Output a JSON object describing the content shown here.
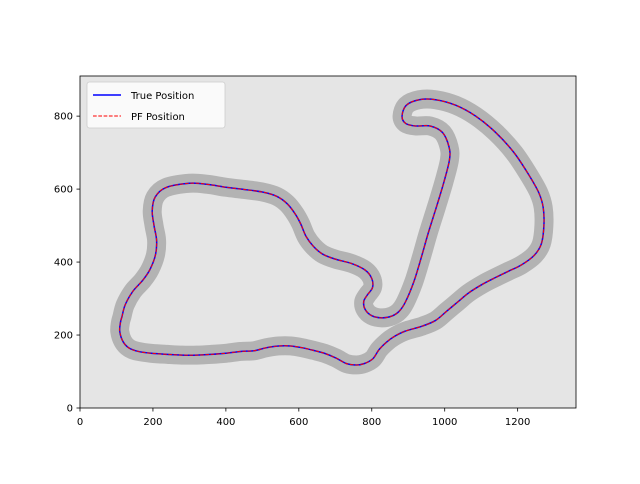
{
  "chart_data": {
    "type": "line",
    "title": "",
    "xlabel": "",
    "ylabel": "",
    "xlim": [
      0,
      1360
    ],
    "ylim": [
      0,
      910
    ],
    "xticks": [
      0,
      200,
      400,
      600,
      800,
      1000,
      1200
    ],
    "yticks": [
      0,
      200,
      400,
      600,
      800
    ],
    "xtick_labels": [
      "0",
      "200",
      "400",
      "600",
      "800",
      "1000",
      "1200"
    ],
    "ytick_labels": [
      "0",
      "200",
      "400",
      "600",
      "800"
    ],
    "grid": false,
    "axes_background": "#e5e5e5",
    "track_band": {
      "color": "#b3b3b3",
      "width_data_units": 52
    },
    "legend": {
      "placement": "upper-left",
      "entries": [
        {
          "label": "True Position",
          "color": "#0000ff",
          "style": "solid"
        },
        {
          "label": "PF Position",
          "color": "#ff0000",
          "style": "dashed"
        }
      ]
    },
    "series": [
      {
        "name": "True Position",
        "color": "#0000ff",
        "style": "solid",
        "points": [
          [
            115,
            250
          ],
          [
            124,
            283
          ],
          [
            145,
            320
          ],
          [
            172,
            350
          ],
          [
            192,
            380
          ],
          [
            207,
            420
          ],
          [
            210,
            460
          ],
          [
            203,
            500
          ],
          [
            198,
            540
          ],
          [
            206,
            578
          ],
          [
            235,
            604
          ],
          [
            300,
            616
          ],
          [
            350,
            613
          ],
          [
            400,
            605
          ],
          [
            450,
            599
          ],
          [
            500,
            592
          ],
          [
            540,
            580
          ],
          [
            568,
            560
          ],
          [
            590,
            532
          ],
          [
            605,
            505
          ],
          [
            620,
            470
          ],
          [
            640,
            443
          ],
          [
            665,
            422
          ],
          [
            700,
            408
          ],
          [
            745,
            396
          ],
          [
            782,
            378
          ],
          [
            800,
            355
          ],
          [
            802,
            330
          ],
          [
            788,
            310
          ],
          [
            778,
            292
          ],
          [
            782,
            270
          ],
          [
            800,
            253
          ],
          [
            828,
            247
          ],
          [
            855,
            252
          ],
          [
            875,
            265
          ],
          [
            892,
            290
          ],
          [
            915,
            345
          ],
          [
            935,
            410
          ],
          [
            955,
            480
          ],
          [
            977,
            550
          ],
          [
            998,
            620
          ],
          [
            1013,
            680
          ],
          [
            1012,
            715
          ],
          [
            994,
            755
          ],
          [
            960,
            773
          ],
          [
            920,
            773
          ],
          [
            893,
            780
          ],
          [
            883,
            800
          ],
          [
            895,
            830
          ],
          [
            930,
            845
          ],
          [
            975,
            845
          ],
          [
            1030,
            830
          ],
          [
            1085,
            800
          ],
          [
            1140,
            755
          ],
          [
            1190,
            700
          ],
          [
            1230,
            640
          ],
          [
            1258,
            590
          ],
          [
            1270,
            550
          ],
          [
            1272,
            500
          ],
          [
            1265,
            450
          ],
          [
            1245,
            418
          ],
          [
            1210,
            392
          ],
          [
            1175,
            375
          ],
          [
            1140,
            358
          ],
          [
            1105,
            340
          ],
          [
            1065,
            315
          ],
          [
            1035,
            290
          ],
          [
            1005,
            265
          ],
          [
            975,
            240
          ],
          [
            940,
            225
          ],
          [
            890,
            210
          ],
          [
            860,
            195
          ],
          [
            840,
            180
          ],
          [
            820,
            160
          ],
          [
            803,
            135
          ],
          [
            780,
            122
          ],
          [
            758,
            118
          ],
          [
            730,
            122
          ],
          [
            702,
            137
          ],
          [
            670,
            150
          ],
          [
            640,
            158
          ],
          [
            610,
            165
          ],
          [
            578,
            170
          ],
          [
            545,
            170
          ],
          [
            510,
            165
          ],
          [
            478,
            157
          ],
          [
            440,
            155
          ],
          [
            400,
            150
          ],
          [
            360,
            147
          ],
          [
            320,
            145
          ],
          [
            280,
            145
          ],
          [
            240,
            147
          ],
          [
            195,
            150
          ],
          [
            160,
            155
          ],
          [
            135,
            164
          ],
          [
            118,
            182
          ],
          [
            109,
            210
          ],
          [
            111,
            235
          ],
          [
            115,
            250
          ]
        ]
      },
      {
        "name": "PF Position",
        "color": "#ff0000",
        "style": "dashed",
        "points": [
          [
            115,
            250
          ],
          [
            124,
            283
          ],
          [
            145,
            320
          ],
          [
            172,
            350
          ],
          [
            192,
            380
          ],
          [
            207,
            420
          ],
          [
            210,
            460
          ],
          [
            203,
            500
          ],
          [
            198,
            540
          ],
          [
            206,
            578
          ],
          [
            235,
            604
          ],
          [
            300,
            616
          ],
          [
            350,
            613
          ],
          [
            400,
            605
          ],
          [
            450,
            599
          ],
          [
            500,
            592
          ],
          [
            540,
            580
          ],
          [
            568,
            560
          ],
          [
            590,
            532
          ],
          [
            605,
            505
          ],
          [
            620,
            470
          ],
          [
            640,
            443
          ],
          [
            665,
            422
          ],
          [
            700,
            408
          ],
          [
            745,
            396
          ],
          [
            782,
            378
          ],
          [
            800,
            355
          ],
          [
            802,
            330
          ],
          [
            788,
            310
          ],
          [
            778,
            292
          ],
          [
            782,
            270
          ],
          [
            800,
            253
          ],
          [
            828,
            247
          ],
          [
            855,
            252
          ],
          [
            875,
            265
          ],
          [
            892,
            290
          ],
          [
            915,
            345
          ],
          [
            935,
            410
          ],
          [
            955,
            480
          ],
          [
            977,
            550
          ],
          [
            998,
            620
          ],
          [
            1013,
            680
          ],
          [
            1012,
            715
          ],
          [
            994,
            755
          ],
          [
            960,
            773
          ],
          [
            920,
            773
          ],
          [
            893,
            780
          ],
          [
            883,
            800
          ],
          [
            895,
            830
          ],
          [
            930,
            845
          ],
          [
            975,
            845
          ],
          [
            1030,
            830
          ],
          [
            1085,
            800
          ],
          [
            1140,
            755
          ],
          [
            1190,
            700
          ],
          [
            1230,
            640
          ],
          [
            1258,
            590
          ],
          [
            1270,
            550
          ],
          [
            1272,
            500
          ],
          [
            1265,
            450
          ],
          [
            1245,
            418
          ],
          [
            1210,
            392
          ],
          [
            1175,
            375
          ],
          [
            1140,
            358
          ],
          [
            1105,
            340
          ],
          [
            1065,
            315
          ],
          [
            1035,
            290
          ],
          [
            1005,
            265
          ],
          [
            975,
            240
          ],
          [
            940,
            225
          ],
          [
            890,
            210
          ],
          [
            860,
            195
          ],
          [
            840,
            180
          ],
          [
            820,
            160
          ],
          [
            803,
            135
          ],
          [
            780,
            122
          ],
          [
            758,
            118
          ],
          [
            730,
            122
          ],
          [
            702,
            137
          ],
          [
            670,
            150
          ],
          [
            640,
            158
          ],
          [
            610,
            165
          ],
          [
            578,
            170
          ],
          [
            545,
            170
          ],
          [
            510,
            165
          ],
          [
            478,
            157
          ],
          [
            440,
            155
          ],
          [
            400,
            150
          ],
          [
            360,
            147
          ],
          [
            320,
            145
          ],
          [
            280,
            145
          ],
          [
            240,
            147
          ],
          [
            195,
            150
          ],
          [
            160,
            155
          ],
          [
            135,
            164
          ],
          [
            118,
            182
          ],
          [
            109,
            210
          ],
          [
            111,
            235
          ],
          [
            115,
            250
          ]
        ]
      }
    ]
  }
}
